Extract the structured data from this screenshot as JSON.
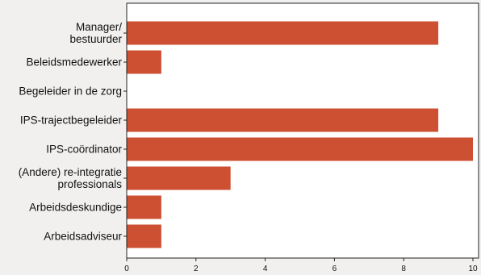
{
  "chart_data": {
    "type": "bar",
    "orientation": "horizontal",
    "title": "",
    "xlabel": "",
    "ylabel": "",
    "xlim": [
      0,
      10
    ],
    "x_ticks": [
      0,
      2,
      4,
      6,
      8,
      10
    ],
    "grid": false,
    "legend": "none",
    "bar_color": "#cd5033",
    "categories": [
      [
        "Manager/",
        "bestuurder"
      ],
      [
        "Beleidsmedewerker"
      ],
      [
        "Begeleider in de zorg"
      ],
      [
        "IPS-trajectbegeleider"
      ],
      [
        "IPS-coördinator"
      ],
      [
        "(Andere) re-integratie",
        "professionals"
      ],
      [
        "Arbeidsdeskundige"
      ],
      [
        "Arbeidsadviseur"
      ]
    ],
    "values": [
      9,
      1,
      0,
      9,
      10,
      3,
      1,
      1
    ]
  }
}
